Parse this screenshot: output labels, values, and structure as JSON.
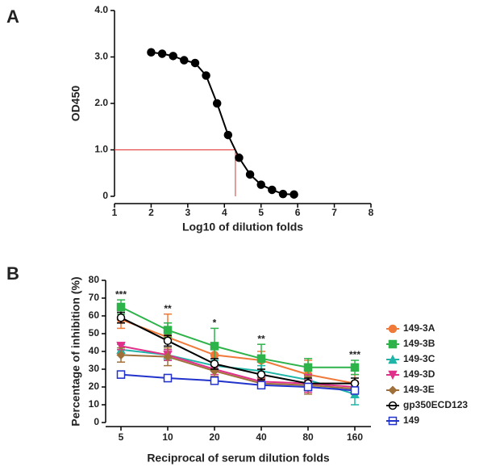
{
  "chart_data": [
    {
      "type": "line",
      "panel": "A",
      "xlabel": "Log10 of dilution folds",
      "ylabel": "OD450",
      "x": [
        2.0,
        2.3,
        2.6,
        2.9,
        3.2,
        3.5,
        3.8,
        4.1,
        4.4,
        4.7,
        5.0,
        5.3,
        5.6,
        5.9
      ],
      "values": [
        3.1,
        3.07,
        3.02,
        2.93,
        2.87,
        2.6,
        2.0,
        1.32,
        0.83,
        0.47,
        0.25,
        0.14,
        0.05,
        0.04
      ],
      "color": "#000000",
      "marker": "circle",
      "reference": {
        "x": 4.3,
        "y": 1.0,
        "color": "#e03030"
      },
      "xlim": [
        1,
        8
      ],
      "xticks": [
        1,
        2,
        3,
        4,
        5,
        6,
        7,
        8
      ],
      "ylim": [
        0,
        4
      ],
      "yticks": [
        0,
        {
          "value": 1,
          "label": "1.0"
        },
        {
          "value": 2,
          "label": "2.0"
        },
        {
          "value": 3,
          "label": "3.0"
        },
        {
          "value": 4,
          "label": "4.0"
        }
      ]
    },
    {
      "type": "line",
      "panel": "B",
      "xlabel": "Reciprocal of serum dilution folds",
      "ylabel": "Percentage of inhibition (%)",
      "categories": [
        "5",
        "10",
        "20",
        "40",
        "80",
        "160"
      ],
      "series": [
        {
          "name": "149-3A",
          "color": "#f07a3a",
          "marker": "circle",
          "values": [
            58,
            48,
            38,
            35,
            27,
            22
          ],
          "errors": [
            5,
            13,
            5,
            5,
            8,
            5
          ]
        },
        {
          "name": "149-3B",
          "color": "#2db34a",
          "marker": "square",
          "values": [
            65,
            52,
            43,
            36,
            31,
            31
          ],
          "errors": [
            4,
            4,
            10,
            8,
            5,
            4
          ]
        },
        {
          "name": "149-3C",
          "color": "#1fb5a8",
          "marker": "triangle-up",
          "values": [
            41,
            38,
            32,
            29,
            24,
            16
          ],
          "errors": [
            3,
            3,
            3,
            3,
            3,
            6
          ]
        },
        {
          "name": "149-3D",
          "color": "#e0308a",
          "marker": "triangle-down",
          "values": [
            43,
            38,
            30,
            23,
            22,
            20
          ],
          "errors": [
            2,
            3,
            3,
            3,
            5,
            3
          ]
        },
        {
          "name": "149-3E",
          "color": "#a0703a",
          "marker": "diamond",
          "values": [
            38,
            37,
            29,
            22,
            21,
            19
          ],
          "errors": [
            4,
            5,
            3,
            3,
            5,
            3
          ]
        },
        {
          "name": "gp350ECD123",
          "color": "#000000",
          "marker": "circle-open",
          "values": [
            59,
            46,
            33,
            27,
            22,
            22
          ],
          "errors": [
            3,
            3,
            3,
            3,
            3,
            3
          ]
        },
        {
          "name": "149",
          "color": "#2233cc",
          "marker": "square-open",
          "values": [
            27,
            25,
            23.5,
            21,
            20,
            18
          ],
          "errors": [
            2,
            2,
            2,
            2,
            2,
            2
          ]
        }
      ],
      "annotations": [
        {
          "x": "5",
          "text": "***"
        },
        {
          "x": "10",
          "text": "**"
        },
        {
          "x": "20",
          "text": "*"
        },
        {
          "x": "40",
          "text": "**"
        },
        {
          "x": "160",
          "text": "***"
        }
      ],
      "legend": "right",
      "ylim": [
        0,
        80
      ],
      "yticks": [
        0,
        10,
        20,
        30,
        40,
        50,
        60,
        70,
        80
      ]
    }
  ]
}
